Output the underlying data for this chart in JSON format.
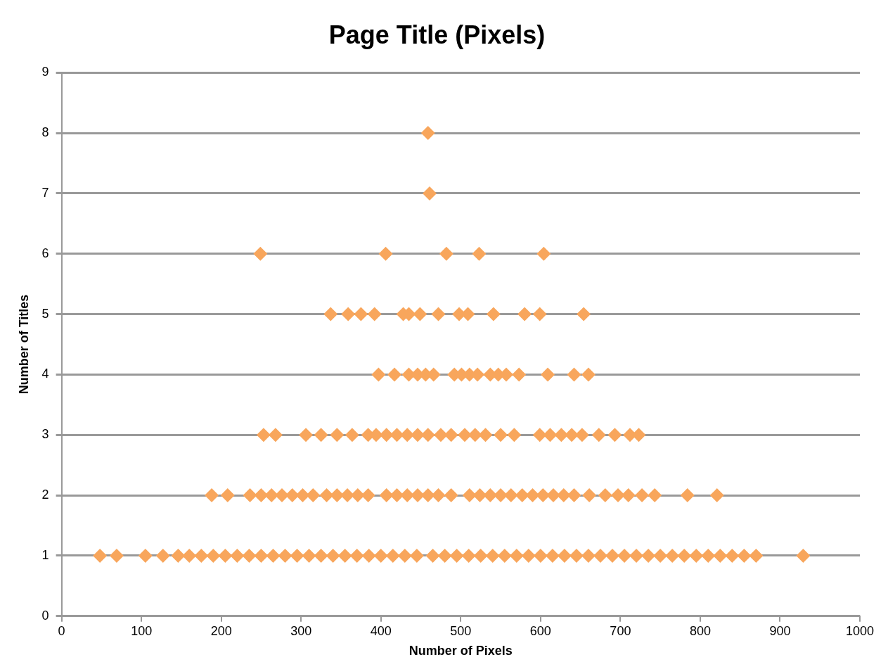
{
  "chart_data": {
    "type": "scatter",
    "title": "Page Title (Pixels)",
    "xlabel": "Number of Pixels",
    "ylabel": "Number of Titles",
    "xlim": [
      0,
      1000
    ],
    "xticks": [
      0,
      100,
      200,
      300,
      400,
      500,
      600,
      700,
      800,
      900,
      1000
    ],
    "ylim": [
      0,
      9
    ],
    "yticks": [
      0,
      1,
      2,
      3,
      4,
      5,
      6,
      7,
      8,
      9
    ],
    "grid": "y",
    "legend": false,
    "marker": "diamond",
    "series": [
      {
        "color": "#f8a65c",
        "x": [
          459,
          461,
          249,
          406,
          482,
          523,
          604,
          337,
          359,
          375,
          392,
          428,
          435,
          449,
          472,
          498,
          509,
          541,
          580,
          599,
          654,
          397,
          417,
          435,
          446,
          456,
          466,
          492,
          501,
          511,
          521,
          537,
          547,
          557,
          573,
          609,
          642,
          660,
          253,
          268,
          306,
          325,
          345,
          364,
          384,
          394,
          407,
          420,
          433,
          446,
          459,
          475,
          488,
          505,
          518,
          531,
          550,
          567,
          599,
          612,
          626,
          639,
          652,
          673,
          693,
          712,
          723,
          188,
          208,
          236,
          250,
          263,
          276,
          289,
          302,
          315,
          332,
          345,
          358,
          371,
          384,
          407,
          420,
          433,
          446,
          459,
          472,
          488,
          511,
          524,
          537,
          550,
          563,
          577,
          590,
          603,
          616,
          629,
          642,
          661,
          681,
          697,
          710,
          727,
          743,
          784,
          821,
          48,
          69,
          105,
          127,
          146,
          160,
          175,
          190,
          205,
          220,
          235,
          250,
          265,
          280,
          295,
          310,
          325,
          340,
          355,
          370,
          385,
          400,
          415,
          430,
          445,
          465,
          480,
          495,
          510,
          525,
          540,
          555,
          570,
          585,
          600,
          615,
          630,
          645,
          660,
          675,
          690,
          705,
          720,
          735,
          750,
          765,
          780,
          795,
          810,
          825,
          840,
          855,
          870,
          929
        ],
        "values": [
          8,
          7,
          6,
          6,
          6,
          6,
          6,
          5,
          5,
          5,
          5,
          5,
          5,
          5,
          5,
          5,
          5,
          5,
          5,
          5,
          5,
          4,
          4,
          4,
          4,
          4,
          4,
          4,
          4,
          4,
          4,
          4,
          4,
          4,
          4,
          4,
          4,
          4,
          3,
          3,
          3,
          3,
          3,
          3,
          3,
          3,
          3,
          3,
          3,
          3,
          3,
          3,
          3,
          3,
          3,
          3,
          3,
          3,
          3,
          3,
          3,
          3,
          3,
          3,
          3,
          3,
          3,
          2,
          2,
          2,
          2,
          2,
          2,
          2,
          2,
          2,
          2,
          2,
          2,
          2,
          2,
          2,
          2,
          2,
          2,
          2,
          2,
          2,
          2,
          2,
          2,
          2,
          2,
          2,
          2,
          2,
          2,
          2,
          2,
          2,
          2,
          2,
          2,
          2,
          2,
          2,
          2,
          1,
          1,
          1,
          1,
          1,
          1,
          1,
          1,
          1,
          1,
          1,
          1,
          1,
          1,
          1,
          1,
          1,
          1,
          1,
          1,
          1,
          1,
          1,
          1,
          1,
          1,
          1,
          1,
          1,
          1,
          1,
          1,
          1,
          1,
          1,
          1,
          1,
          1,
          1,
          1,
          1,
          1,
          1,
          1,
          1,
          1,
          1,
          1,
          1,
          1,
          1,
          1,
          1,
          1
        ]
      }
    ]
  }
}
